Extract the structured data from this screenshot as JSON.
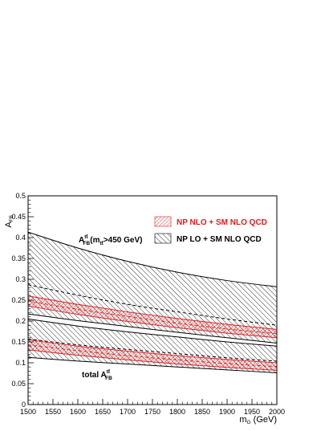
{
  "chart_data": {
    "type": "area",
    "xlabel": "m_G (GeV)",
    "xlabel_main": "m",
    "xlabel_sub": "G",
    "xlabel_unit": " (GeV)",
    "ylabel": "A_FB",
    "ylabel_main": "A",
    "ylabel_sub": "FB",
    "xlim": [
      1500,
      2000
    ],
    "ylim": [
      0,
      0.5
    ],
    "x_ticks": [
      "1500",
      "1550",
      "1600",
      "1650",
      "1700",
      "1750",
      "1800",
      "1850",
      "1900",
      "1950",
      "2000"
    ],
    "y_ticks": [
      "0",
      "0.05",
      "0.1",
      "0.15",
      "0.2",
      "0.25",
      "0.3",
      "0.35",
      "0.4",
      "0.45",
      "0.5"
    ],
    "legend": [
      {
        "label": "NP NLO + SM NLO QCD",
        "color": "#e41a1c",
        "hatch": "diag-up"
      },
      {
        "label": "NP LO + SM NLO QCD",
        "color": "#000000",
        "hatch": "diag-down"
      }
    ],
    "legend_position": "upper-right",
    "annotations": {
      "upper_band": {
        "main": "A",
        "sub": "FB",
        "sup": "tt̄",
        "paren_open": "(m",
        "paren_sub": "tt̄",
        "rest": ">450 GeV)"
      },
      "lower_band": {
        "prefix": "total A",
        "sub": "FB",
        "sup": "tt̄"
      }
    },
    "series": [
      {
        "name": "NP LO + SM NLO QCD",
        "group": "mtt>450",
        "color": "#000000",
        "hatch": "diag-down",
        "x": [
          1500,
          1600,
          1700,
          1800,
          1900,
          2000
        ],
        "upper": [
          0.413,
          0.375,
          0.343,
          0.317,
          0.297,
          0.282
        ],
        "lower": [
          0.217,
          0.201,
          0.187,
          0.173,
          0.16,
          0.147
        ],
        "center": [
          0.287,
          0.262,
          0.24,
          0.222,
          0.205,
          0.19
        ]
      },
      {
        "name": "NP NLO + SM NLO QCD",
        "group": "mtt>450",
        "color": "#e41a1c",
        "hatch": "diag-up",
        "x": [
          1500,
          1600,
          1700,
          1800,
          1900,
          2000
        ],
        "upper": [
          0.26,
          0.24,
          0.222,
          0.206,
          0.192,
          0.18
        ],
        "lower": [
          0.236,
          0.216,
          0.199,
          0.184,
          0.171,
          0.16
        ],
        "center": [
          0.248,
          0.228,
          0.211,
          0.195,
          0.181,
          0.17
        ]
      },
      {
        "name": "NP LO + SM NLO QCD",
        "group": "total",
        "color": "#000000",
        "hatch": "diag-down",
        "x": [
          1500,
          1600,
          1700,
          1800,
          1900,
          2000
        ],
        "upper": [
          0.205,
          0.188,
          0.174,
          0.162,
          0.15,
          0.14
        ],
        "lower": [
          0.113,
          0.104,
          0.097,
          0.09,
          0.083,
          0.076
        ],
        "center": [
          0.157,
          0.143,
          0.132,
          0.122,
          0.112,
          0.104
        ]
      },
      {
        "name": "NP NLO + SM NLO QCD",
        "group": "total",
        "color": "#e41a1c",
        "hatch": "diag-up",
        "x": [
          1500,
          1600,
          1700,
          1800,
          1900,
          2000
        ],
        "upper": [
          0.155,
          0.14,
          0.128,
          0.117,
          0.108,
          0.1
        ],
        "lower": [
          0.131,
          0.118,
          0.107,
          0.097,
          0.089,
          0.082
        ],
        "center": [
          0.143,
          0.129,
          0.117,
          0.107,
          0.098,
          0.091
        ]
      }
    ]
  }
}
